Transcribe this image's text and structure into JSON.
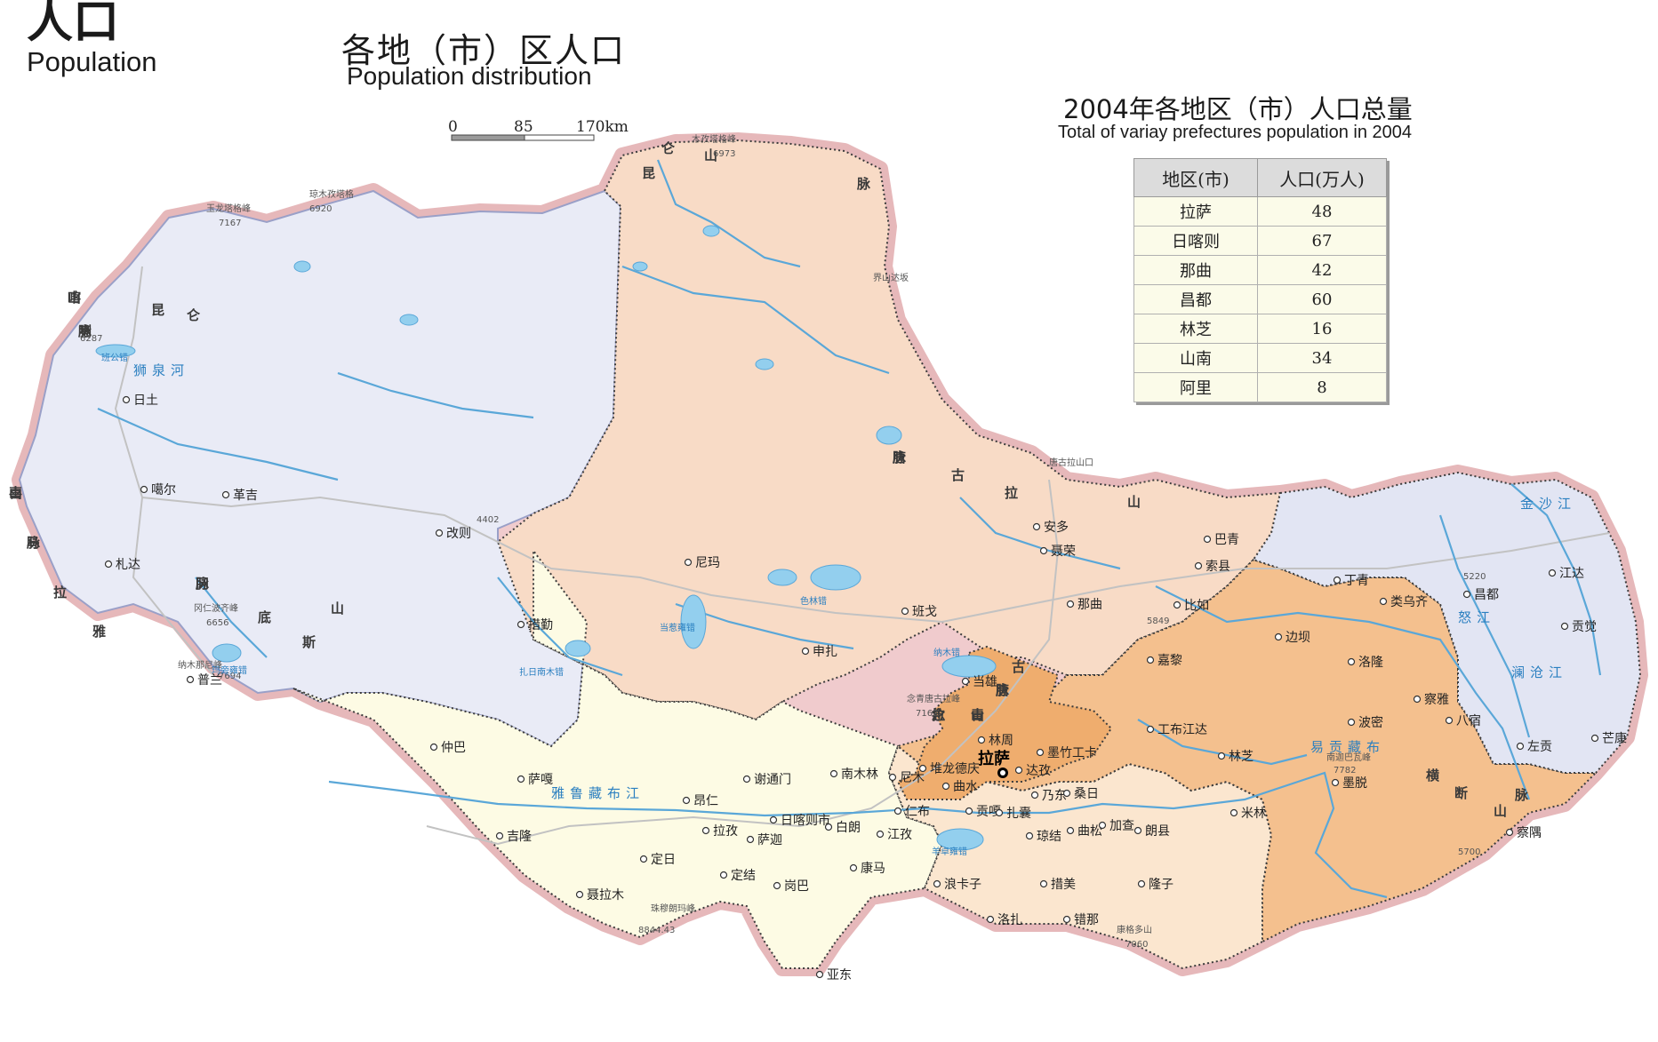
{
  "header": {
    "title": "人口",
    "subtitle": "Population"
  },
  "map": {
    "title": "各地（市）区人口",
    "subtitle": "Population distribution",
    "scale": [
      "0",
      "85",
      "170km"
    ]
  },
  "population_table": {
    "title": "2004年各地区（市）人口总量",
    "subtitle": "Total of variay prefectures population in 2004",
    "headers": [
      "地区(市)",
      "人口(万人)"
    ],
    "rows": [
      {
        "region": "拉萨",
        "value": "48"
      },
      {
        "region": "日喀则",
        "value": "67"
      },
      {
        "region": "那曲",
        "value": "42"
      },
      {
        "region": "昌都",
        "value": "60"
      },
      {
        "region": "林芝",
        "value": "16"
      },
      {
        "region": "山南",
        "value": "34"
      },
      {
        "region": "阿里",
        "value": "8"
      }
    ]
  },
  "colors": {
    "ali": "#e9ebf6",
    "nagqu": "#f8dbc6",
    "shigatse": "#fdfbe4",
    "lhasa": "#efad6e",
    "shannan": "#fbe6cf",
    "nyingchi": "#f4c08e",
    "qamdo": "#e2e5f3",
    "halo": "#f0cbcd",
    "river": "#5aa7d8",
    "lake": "#93cfee"
  },
  "map_labels": {
    "capital": "拉萨",
    "cities": [
      "日土",
      "噶尔",
      "革吉",
      "改则",
      "札达",
      "普兰",
      "措勤",
      "尼玛",
      "班戈",
      "申扎",
      "安多",
      "聂荣",
      "巴青",
      "索县",
      "那曲",
      "比如",
      "嘉黎",
      "丁青",
      "类乌齐",
      "昌都",
      "江达",
      "贡觉",
      "边坝",
      "洛隆",
      "八宿",
      "察雅",
      "左贡",
      "芒康",
      "当雄",
      "林周",
      "墨竹工卡",
      "达孜",
      "堆龙德庆",
      "曲水",
      "尼木",
      "贡嘎",
      "扎囊",
      "乃东",
      "桑日",
      "琼结",
      "曲松",
      "加查",
      "朗县",
      "错那",
      "工布江达",
      "林芝",
      "米林",
      "墨脱",
      "波密",
      "察隅",
      "仲巴",
      "萨嘎",
      "昂仁",
      "谢通门",
      "南木林",
      "日喀则市",
      "仁布",
      "白朗",
      "江孜",
      "拉孜",
      "萨迦",
      "定日",
      "吉隆",
      "聂拉木",
      "定结",
      "岗巴",
      "康马",
      "亚东",
      "浪卡子",
      "洛扎",
      "隆子",
      "措美"
    ],
    "mountains": [
      "昆仑山脉",
      "喀喇昆仑山脉",
      "冈底斯山脉",
      "念青唐古拉山脉",
      "唐古拉山脉",
      "喜马拉雅山脉",
      "横断山脉"
    ],
    "peaks": [
      "木孜塔格峰",
      "6973",
      "玉龙塔格峰",
      "7167",
      "琼木孜塔格",
      "6920",
      "冈仁波齐峰",
      "6656",
      "纳木那尼峰",
      "7694",
      "念青唐古拉峰",
      "7162",
      "南迦巴瓦峰",
      "7782",
      "珠穆朗玛峰",
      "8844.43",
      "康格多山",
      "7060",
      "唐古拉山口",
      "界山达坂",
      "4402",
      "6287",
      "5849",
      "5220",
      "5700"
    ],
    "rivers": [
      "雅鲁藏布江",
      "金沙江",
      "澜沧江",
      "怒江",
      "易贡藏布",
      "狮泉河"
    ],
    "lakes": [
      "班公错",
      "纳木错",
      "色林错",
      "当惹雍错",
      "玛旁雍错",
      "扎日南木错",
      "羊卓雍错"
    ]
  }
}
